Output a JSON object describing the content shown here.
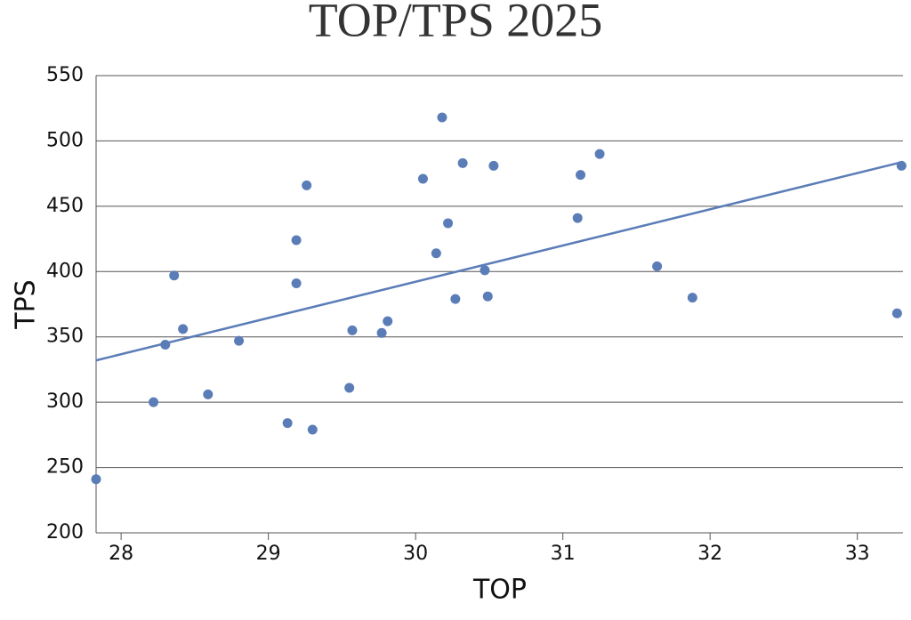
{
  "chart_data": {
    "type": "scatter",
    "title": "TOP/TPS 2025",
    "xlabel": "TOP",
    "ylabel": "TPS",
    "color": "#5b7db7",
    "grid": true,
    "xlim": [
      27.83,
      33.31
    ],
    "ylim": [
      200,
      550
    ],
    "xticks": [
      28,
      29,
      30,
      31,
      32,
      33
    ],
    "yticks": [
      200,
      250,
      300,
      350,
      400,
      450,
      500,
      550
    ],
    "x": [
      27.83,
      28.22,
      28.3,
      28.36,
      28.42,
      28.59,
      28.8,
      29.13,
      29.19,
      29.19,
      29.26,
      29.3,
      29.55,
      29.57,
      29.77,
      29.81,
      30.05,
      30.14,
      30.18,
      30.22,
      30.27,
      30.32,
      30.47,
      30.49,
      30.53,
      31.1,
      31.12,
      31.25,
      31.64,
      31.88,
      33.27,
      33.3
    ],
    "y": [
      241,
      300,
      344,
      397,
      356,
      306,
      347,
      284,
      424,
      391,
      466,
      279,
      311,
      355,
      353,
      362,
      471,
      414,
      518,
      437,
      379,
      483,
      401,
      381,
      481,
      441,
      474,
      490,
      404,
      380,
      368,
      481
    ],
    "trendline": {
      "x": [
        27.83,
        33.31
      ],
      "y": [
        332,
        484
      ]
    }
  }
}
